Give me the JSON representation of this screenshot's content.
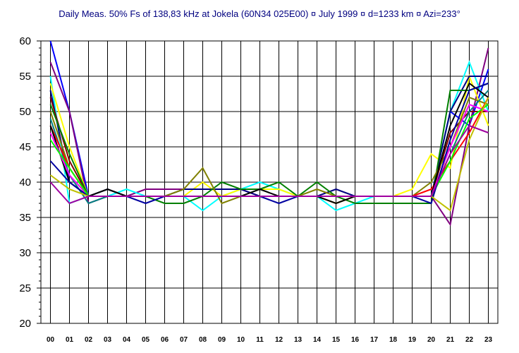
{
  "chart_data": {
    "type": "line",
    "title": "Daily Meas. 50% Fs of 138,83 kHz at Jokela (60N34  025E00)  ¤  July 1999 ¤ d=1233 km ¤ Azi=233°",
    "xlabel": "",
    "ylabel": "",
    "categories": [
      "00",
      "01",
      "02",
      "03",
      "04",
      "05",
      "06",
      "07",
      "08",
      "09",
      "10",
      "11",
      "12",
      "13",
      "14",
      "15",
      "16",
      "17",
      "18",
      "19",
      "20",
      "21",
      "22",
      "23"
    ],
    "yticks": [
      20,
      25,
      30,
      35,
      40,
      45,
      50,
      55,
      60
    ],
    "ylim": [
      20,
      60
    ],
    "grid": true,
    "legend": "none",
    "series": [
      {
        "color": "#0000ff",
        "values": [
          60,
          50,
          38,
          38,
          38,
          38,
          38,
          38,
          38,
          38,
          38,
          38,
          38,
          38,
          38,
          38,
          38,
          38,
          38,
          38,
          38,
          50,
          48,
          56
        ]
      },
      {
        "color": "#800080",
        "values": [
          57,
          50,
          37,
          38,
          38,
          39,
          39,
          39,
          39,
          39,
          39,
          38,
          38,
          38,
          38,
          38,
          38,
          38,
          38,
          38,
          38,
          34,
          48,
          59
        ]
      },
      {
        "color": "#00ffff",
        "values": [
          55,
          37,
          38,
          38,
          39,
          38,
          38,
          38,
          36,
          38,
          39,
          40,
          39,
          38,
          38,
          36,
          37,
          38,
          38,
          38,
          38,
          50,
          57,
          50
        ]
      },
      {
        "color": "#ffff00",
        "values": [
          54,
          45,
          38,
          38,
          38,
          38,
          38,
          38,
          40,
          38,
          39,
          39,
          39,
          38,
          38,
          37,
          38,
          38,
          38,
          39,
          44,
          42,
          55,
          48
        ]
      },
      {
        "color": "#000080",
        "values": [
          53,
          40,
          38,
          39,
          38,
          38,
          38,
          39,
          39,
          39,
          39,
          38,
          38,
          38,
          38,
          39,
          38,
          38,
          38,
          38,
          38,
          50,
          55,
          55
        ]
      },
      {
        "color": "#800000",
        "values": [
          52,
          43,
          38,
          38,
          38,
          38,
          38,
          38,
          38,
          38,
          38,
          38,
          38,
          38,
          38,
          38,
          38,
          38,
          38,
          38,
          38,
          47,
          50,
          50
        ]
      },
      {
        "color": "#008000",
        "values": [
          51,
          44,
          38,
          38,
          38,
          38,
          37,
          37,
          38,
          40,
          39,
          39,
          40,
          38,
          40,
          38,
          37,
          37,
          37,
          37,
          37,
          53,
          53,
          54
        ]
      },
      {
        "color": "#808000",
        "values": [
          50,
          42,
          38,
          38,
          38,
          38,
          38,
          39,
          42,
          37,
          38,
          38,
          38,
          38,
          39,
          38,
          38,
          38,
          38,
          38,
          40,
          45,
          52,
          51
        ]
      },
      {
        "color": "#008080",
        "values": [
          49,
          41,
          37,
          38,
          38,
          38,
          38,
          38,
          38,
          38,
          38,
          38,
          38,
          38,
          38,
          38,
          38,
          38,
          38,
          38,
          38,
          44,
          50,
          53
        ]
      },
      {
        "color": "#ff0000",
        "values": [
          48,
          42,
          38,
          38,
          38,
          38,
          38,
          38,
          38,
          38,
          38,
          38,
          38,
          38,
          38,
          38,
          38,
          38,
          38,
          38,
          39,
          43,
          47,
          52
        ]
      },
      {
        "color": "#000000",
        "values": [
          48,
          40,
          38,
          39,
          38,
          38,
          38,
          38,
          38,
          38,
          38,
          39,
          38,
          38,
          38,
          37,
          38,
          38,
          38,
          38,
          38,
          48,
          54,
          52
        ]
      },
      {
        "color": "#ff00ff",
        "values": [
          47,
          41,
          38,
          38,
          38,
          38,
          38,
          38,
          38,
          38,
          38,
          38,
          38,
          38,
          38,
          38,
          38,
          38,
          38,
          38,
          38,
          45,
          51,
          50
        ]
      },
      {
        "color": "#00ff00",
        "values": [
          46,
          42,
          38,
          38,
          38,
          38,
          38,
          38,
          38,
          38,
          38,
          38,
          38,
          38,
          38,
          38,
          38,
          38,
          38,
          38,
          38,
          43,
          49,
          51
        ]
      },
      {
        "color": "#0000a0",
        "values": [
          43,
          40,
          38,
          38,
          38,
          37,
          38,
          38,
          38,
          38,
          38,
          38,
          37,
          38,
          38,
          38,
          38,
          38,
          38,
          38,
          37,
          46,
          53,
          54
        ]
      },
      {
        "color": "#c0c000",
        "values": [
          41,
          39,
          38,
          38,
          38,
          38,
          38,
          38,
          38,
          38,
          38,
          38,
          38,
          38,
          38,
          38,
          38,
          38,
          38,
          38,
          38,
          36,
          46,
          52
        ]
      },
      {
        "color": "#a000a0",
        "values": [
          40,
          37,
          38,
          38,
          38,
          38,
          38,
          38,
          38,
          38,
          38,
          38,
          38,
          38,
          38,
          38,
          38,
          38,
          38,
          38,
          38,
          44,
          48,
          47
        ]
      }
    ]
  }
}
